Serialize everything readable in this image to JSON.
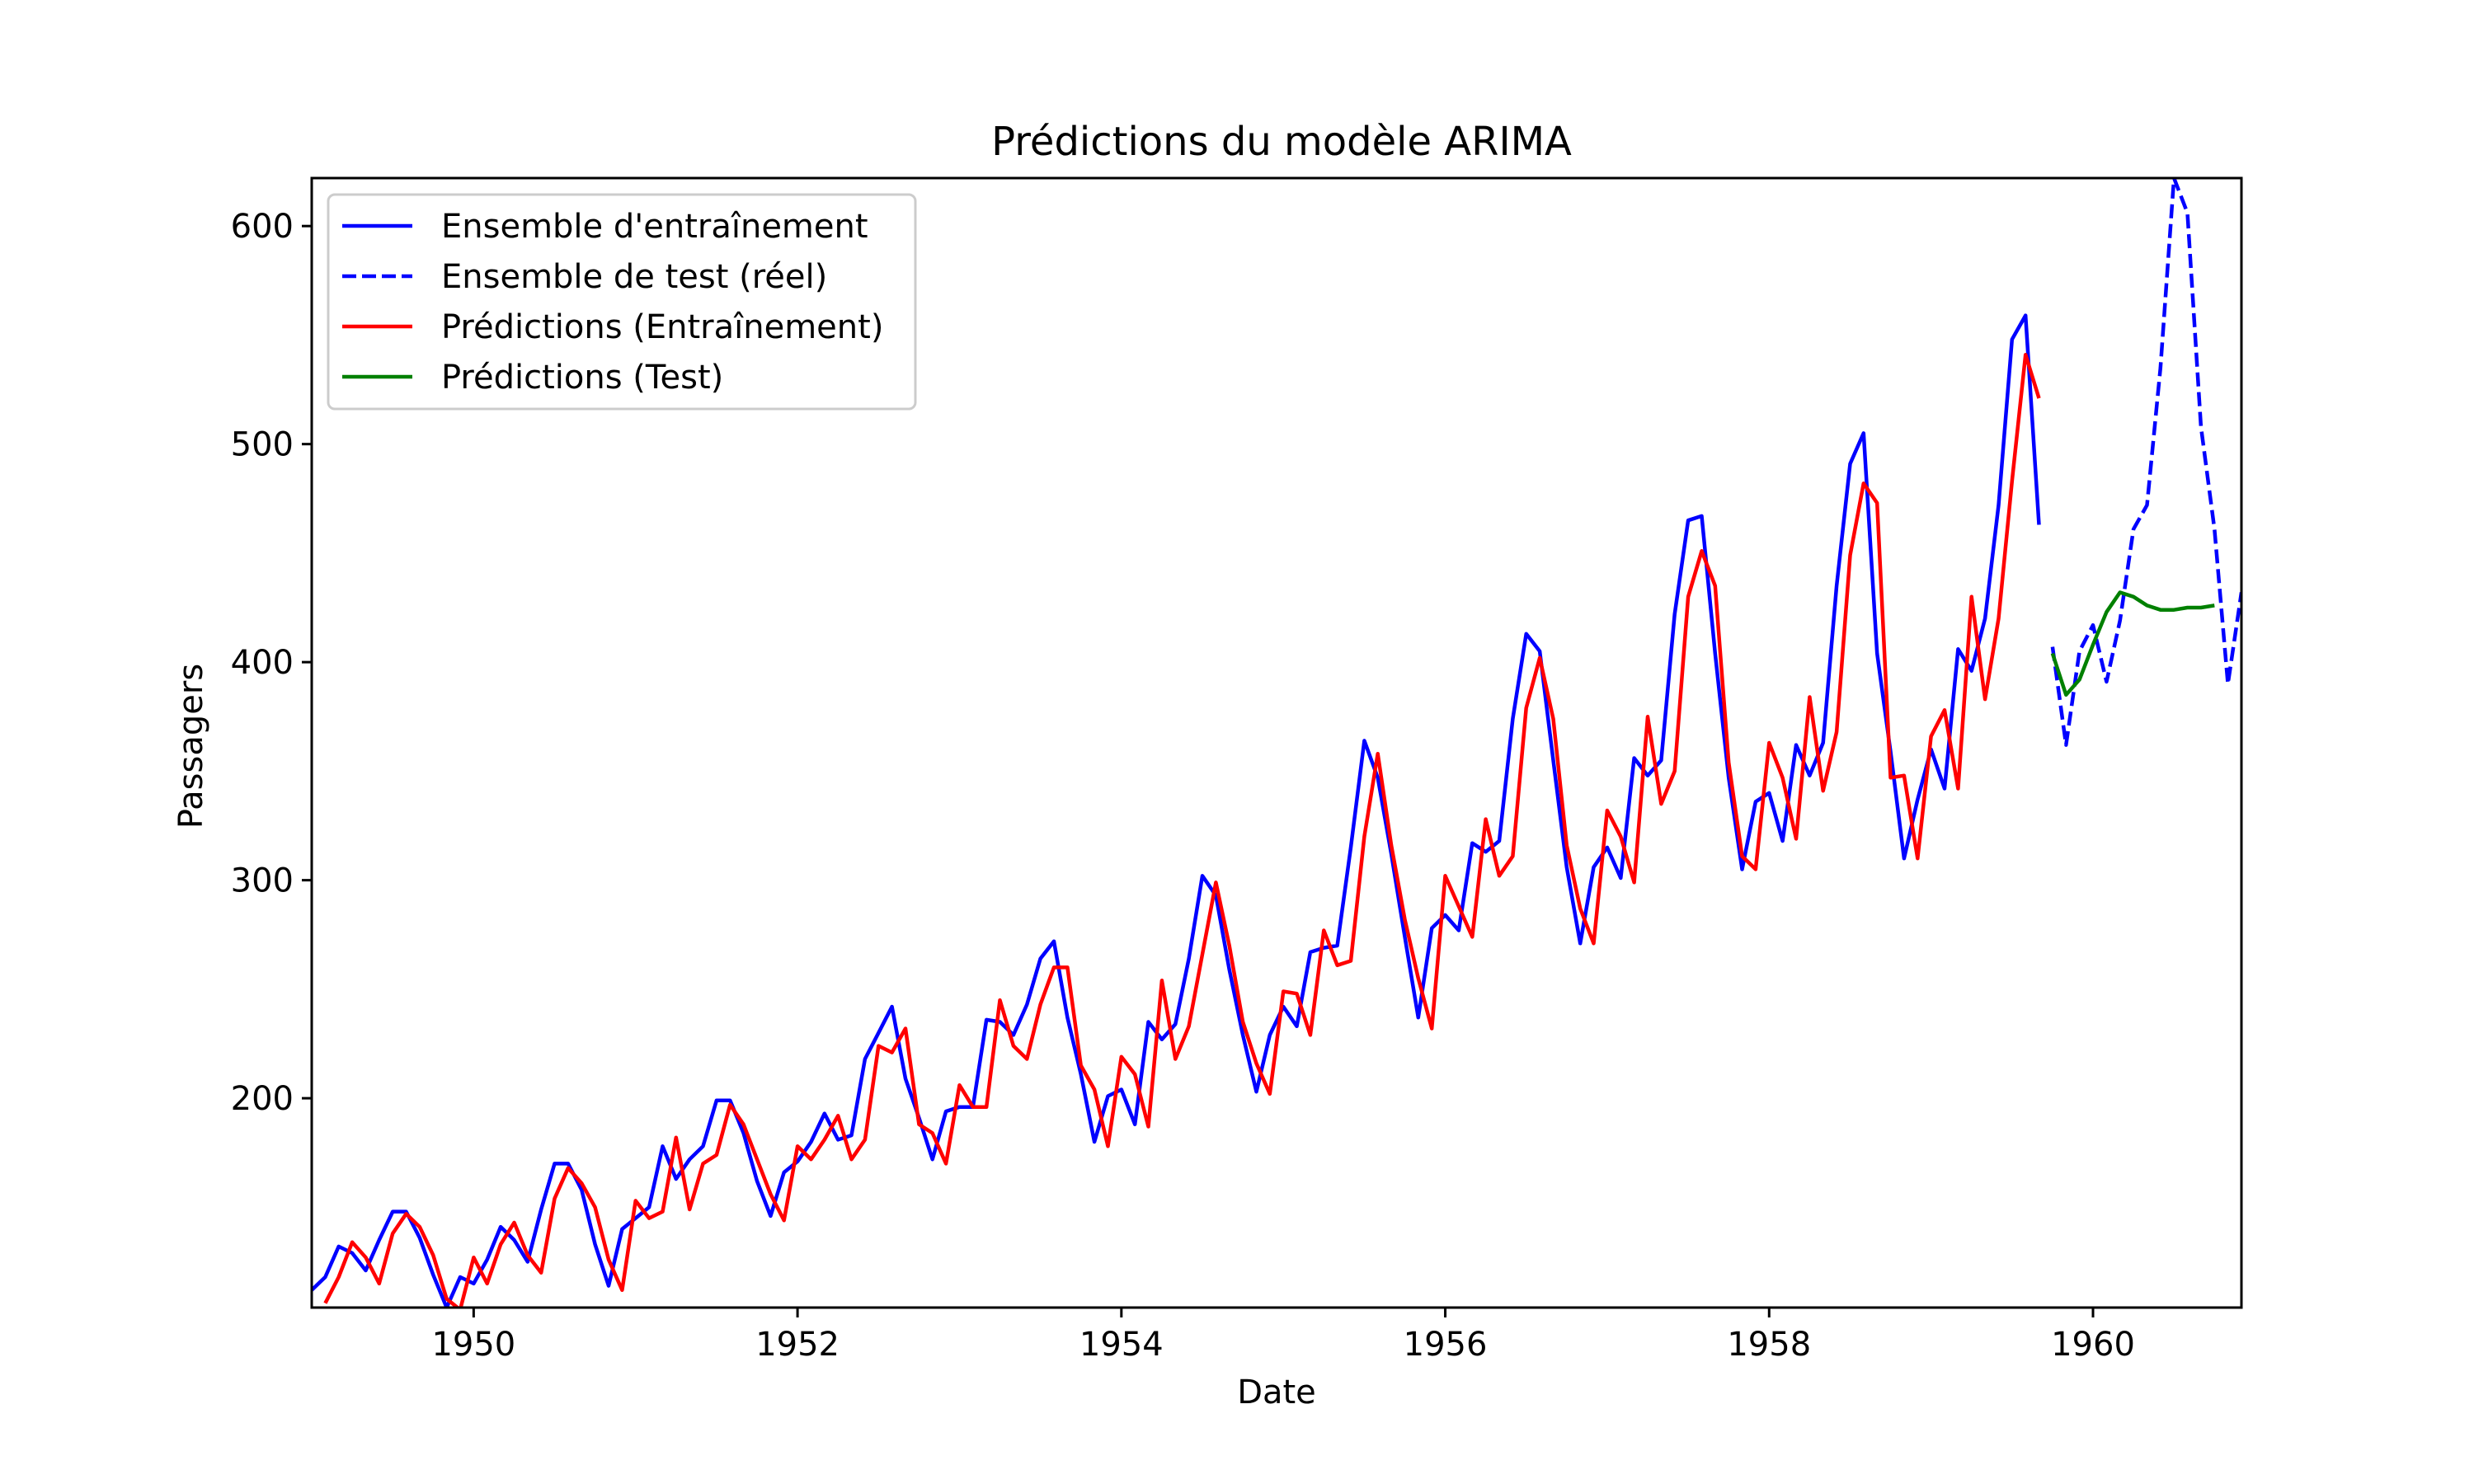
{
  "chart_data": {
    "type": "line",
    "title": "Prédictions du modèle ARIMA",
    "xlabel": "Date",
    "ylabel": "Passagers",
    "xlim": [
      "1949-01",
      "1960-12"
    ],
    "ylim": [
      104,
      622
    ],
    "x_ticks": [
      "1950",
      "1952",
      "1954",
      "1956",
      "1958",
      "1960"
    ],
    "y_ticks": [
      200,
      300,
      400,
      500,
      600
    ],
    "grid": false,
    "legend_position": "upper-left",
    "series": [
      {
        "name": "Ensemble d'entraînement",
        "color": "#0000ff",
        "style": "solid",
        "start": "1949-01",
        "values": [
          112,
          118,
          132,
          129,
          121,
          135,
          148,
          148,
          136,
          119,
          104,
          118,
          115,
          126,
          141,
          135,
          125,
          149,
          170,
          170,
          158,
          133,
          114,
          140,
          145,
          150,
          178,
          163,
          172,
          178,
          199,
          199,
          184,
          162,
          146,
          166,
          171,
          180,
          193,
          181,
          183,
          218,
          230,
          242,
          209,
          191,
          172,
          194,
          196,
          196,
          236,
          235,
          229,
          243,
          264,
          272,
          237,
          211,
          180,
          201,
          204,
          188,
          235,
          227,
          234,
          264,
          302,
          293,
          259,
          229,
          203,
          229,
          242,
          233,
          267,
          269,
          270,
          315,
          364,
          347,
          312,
          274,
          237,
          278,
          284,
          277,
          317,
          313,
          318,
          374,
          413,
          405,
          355,
          306,
          271,
          306,
          315,
          301,
          356,
          348,
          355,
          422,
          465,
          467,
          404,
          347,
          305,
          336,
          340,
          318,
          362,
          348,
          363,
          435,
          491,
          505,
          404,
          359,
          310,
          337,
          360,
          342,
          406,
          396,
          420,
          472,
          548,
          559,
          463
        ]
      },
      {
        "name": "Ensemble de test (réel)",
        "color": "#0000ff",
        "style": "dashed",
        "start": "1959-10",
        "values": [
          407,
          362,
          405,
          417,
          391,
          419,
          461,
          472,
          535,
          622,
          606,
          508,
          461,
          390,
          432
        ]
      },
      {
        "name": "Prédictions (Entraînement)",
        "color": "#ff0000",
        "style": "solid",
        "start": "1949-02",
        "values": [
          106,
          118,
          134,
          127,
          115,
          138,
          147,
          141,
          128,
          108,
          103,
          127,
          115,
          133,
          143,
          128,
          120,
          154,
          168,
          161,
          150,
          126,
          112,
          153,
          145,
          148,
          182,
          149,
          170,
          174,
          197,
          188,
          172,
          156,
          144,
          178,
          172,
          181,
          192,
          172,
          181,
          224,
          221,
          232,
          188,
          184,
          170,
          206,
          196,
          196,
          245,
          224,
          218,
          243,
          260,
          260,
          215,
          204,
          178,
          219,
          211,
          187,
          254,
          218,
          233,
          266,
          299,
          270,
          235,
          216,
          202,
          249,
          248,
          229,
          277,
          261,
          263,
          320,
          358,
          316,
          282,
          255,
          232,
          302,
          288,
          274,
          328,
          302,
          311,
          379,
          402,
          374,
          316,
          287,
          271,
          332,
          320,
          299,
          375,
          335,
          350,
          430,
          451,
          435,
          354,
          311,
          305,
          363,
          347,
          319,
          384,
          341,
          368,
          449,
          482,
          473,
          347,
          348,
          310,
          366,
          378,
          342,
          430,
          383,
          420,
          483,
          541,
          521
        ]
      },
      {
        "name": "Prédictions (Test)",
        "color": "#008000",
        "style": "solid",
        "start": "1959-10",
        "values": [
          404,
          385,
          392,
          408,
          423,
          432,
          430,
          426,
          424,
          424,
          425,
          425,
          426
        ]
      }
    ]
  }
}
